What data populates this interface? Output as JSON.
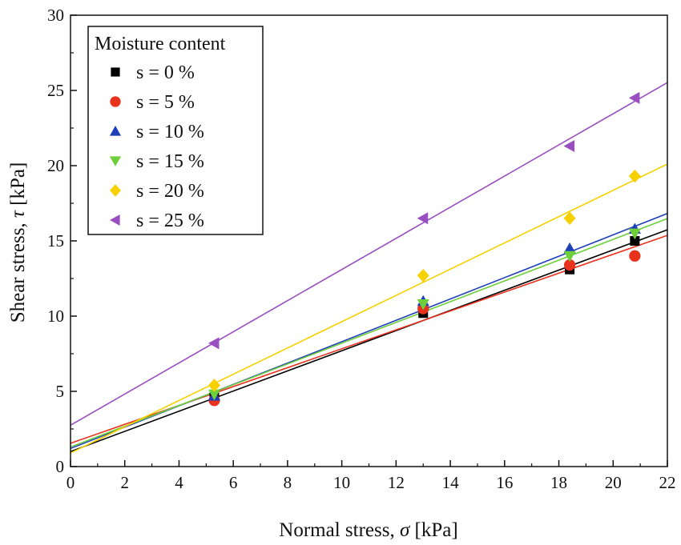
{
  "chart_data": {
    "type": "scatter",
    "xlabel_prefix": "Normal stress, ",
    "xlabel_symbol": "σ",
    "xlabel_unit": " [kPa]",
    "ylabel_prefix": "Shear stress, ",
    "ylabel_symbol": "τ",
    "ylabel_unit": " [kPa]",
    "xlim": [
      0,
      22
    ],
    "ylim": [
      0,
      30
    ],
    "xticks": [
      0,
      2,
      4,
      6,
      8,
      10,
      12,
      14,
      16,
      18,
      20,
      22
    ],
    "yticks": [
      0,
      5,
      10,
      15,
      20,
      25,
      30
    ],
    "grid": false,
    "legend": {
      "title": "Moisture content",
      "position": "top-left"
    },
    "series": [
      {
        "name": "s = 0 %",
        "marker": "square",
        "color": "#000000",
        "x": [
          5.3,
          13.0,
          18.4,
          20.8
        ],
        "y": [
          4.6,
          10.2,
          13.1,
          15.0
        ],
        "fit": {
          "intercept": 1.0,
          "slope": 0.67
        }
      },
      {
        "name": "s = 5 %",
        "marker": "circle",
        "color": "#e8321e",
        "x": [
          5.3,
          13.0,
          18.4,
          20.8
        ],
        "y": [
          4.4,
          10.5,
          13.4,
          14.0
        ],
        "fit": {
          "intercept": 1.55,
          "slope": 0.628
        }
      },
      {
        "name": "s = 10 %",
        "marker": "triangle-up",
        "color": "#1f3fb8",
        "x": [
          5.3,
          13.0,
          18.4,
          20.8
        ],
        "y": [
          4.7,
          11.0,
          14.5,
          15.8
        ],
        "fit": {
          "intercept": 1.2,
          "slope": 0.71
        }
      },
      {
        "name": "s = 15 %",
        "marker": "triangle-down",
        "color": "#6dcf3a",
        "x": [
          5.3,
          13.0,
          18.4,
          20.8
        ],
        "y": [
          4.8,
          10.8,
          14.0,
          15.5
        ],
        "fit": {
          "intercept": 1.3,
          "slope": 0.69
        }
      },
      {
        "name": "s = 20 %",
        "marker": "diamond",
        "color": "#f7d000",
        "x": [
          5.3,
          13.0,
          18.4,
          20.8
        ],
        "y": [
          5.4,
          12.7,
          16.5,
          19.3
        ],
        "fit": {
          "intercept": 0.9,
          "slope": 0.873
        }
      },
      {
        "name": "s = 25 %",
        "marker": "triangle-left",
        "color": "#9a4fc0",
        "x": [
          5.3,
          13.0,
          18.4,
          20.8
        ],
        "y": [
          8.2,
          16.5,
          21.3,
          24.5
        ],
        "fit": {
          "intercept": 2.75,
          "slope": 1.035
        }
      }
    ]
  }
}
